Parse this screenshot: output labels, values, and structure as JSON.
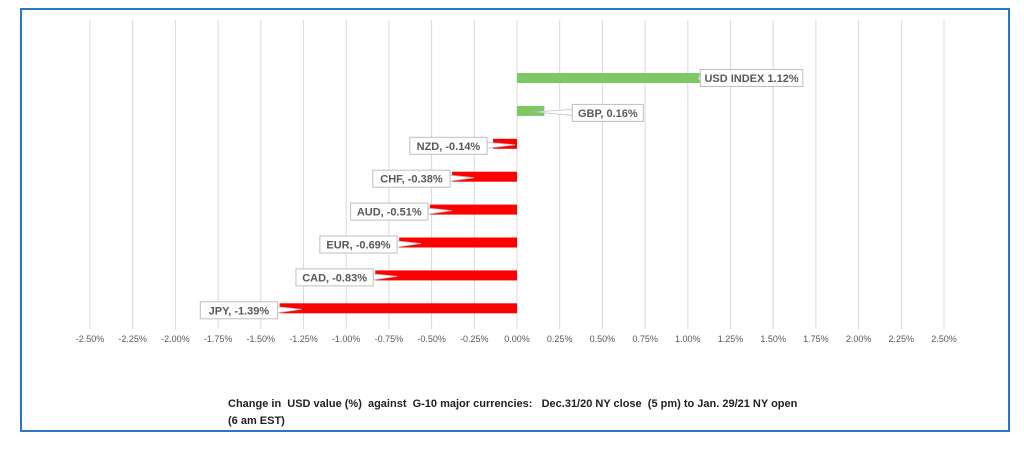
{
  "chart_data": {
    "type": "bar",
    "orientation": "horizontal",
    "categories": [
      "USD INDEX",
      "GBP",
      "NZD",
      "CHF",
      "AUD",
      "EUR",
      "CAD",
      "JPY"
    ],
    "values": [
      1.12,
      0.16,
      -0.14,
      -0.38,
      -0.51,
      -0.69,
      -0.83,
      -1.39
    ],
    "data_labels": [
      "USD INDEX 1.12%",
      "GBP, 0.16%",
      "NZD, -0.14%",
      "CHF, -0.38%",
      "AUD, -0.51%",
      "EUR, -0.69%",
      "CAD, -0.83%",
      "JPY, -1.39%"
    ],
    "xlim": [
      -2.5,
      2.5
    ],
    "xticks": [
      "-2.50%",
      "-2.25%",
      "-2.00%",
      "-1.75%",
      "-1.50%",
      "-1.25%",
      "-1.00%",
      "-0.75%",
      "-0.50%",
      "-0.25%",
      "0.00%",
      "0.25%",
      "0.50%",
      "0.75%",
      "1.00%",
      "1.25%",
      "1.50%",
      "1.75%",
      "2.00%",
      "2.25%",
      "2.50%"
    ],
    "grid": true,
    "colors": {
      "positive": "#7dc765",
      "negative": "#ff0000",
      "frame": "#2e75c6"
    },
    "title_line1": "Change in  USD value (%)  against  G-10 major currencies:   Dec.31/20 NY close  (5 pm) to Jan. 29/21 NY open",
    "title_line2": "(6 am EST)"
  }
}
